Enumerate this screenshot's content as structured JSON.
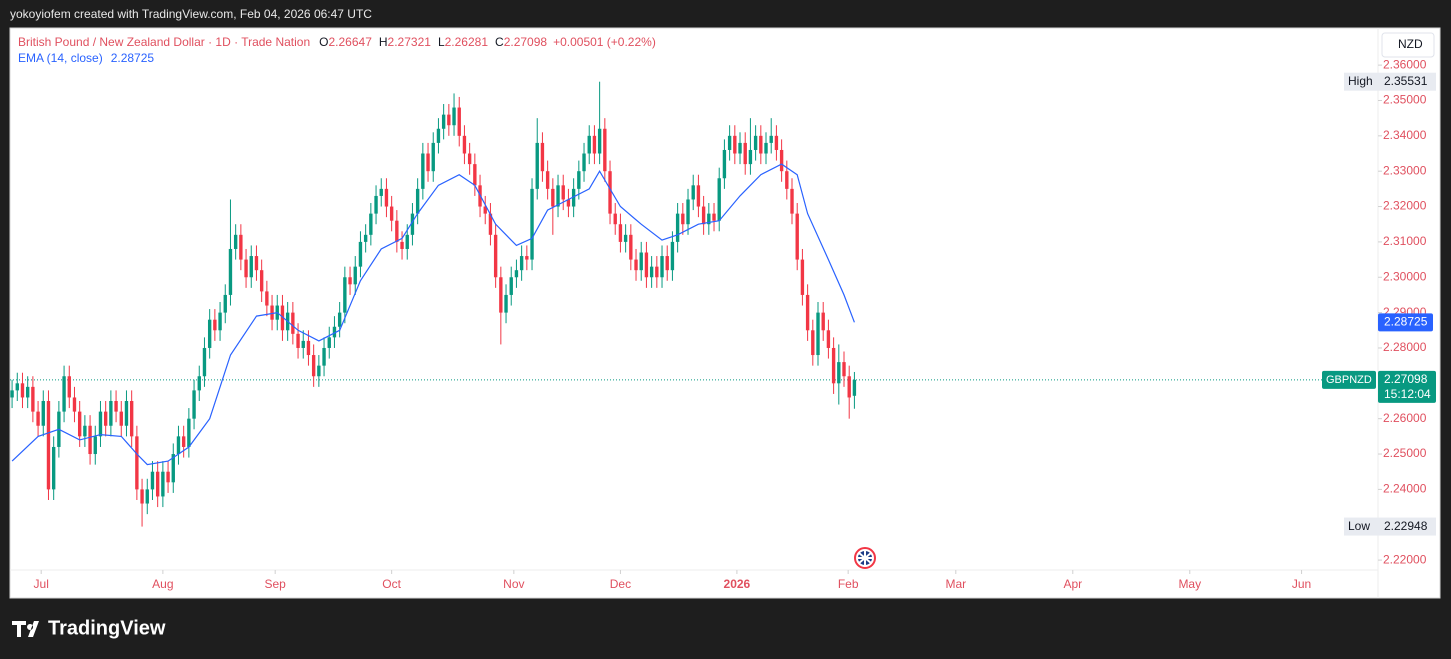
{
  "header": "yokoyiofem created with TradingView.com, Feb 04, 2026 06:47 UTC",
  "brand": "TradingView",
  "chart_data": {
    "type": "candlestick",
    "title": "British Pound / New Zealand Dollar · 1D · Trade Nation",
    "ohlc_labels": [
      "O",
      "H",
      "L",
      "C"
    ],
    "change": "+0.00501 (+0.22%)",
    "currency": "NZD",
    "symbol": "GBPNZD",
    "countdown": "15:12:04",
    "high_label": "High",
    "low_label": "Low",
    "up_color": "#089981",
    "down_color": "#f23645",
    "grid": false,
    "open": [
      2.266,
      2.268,
      2.27,
      2.266,
      2.269,
      2.262,
      2.258,
      2.265,
      2.24,
      2.252,
      2.262,
      2.272,
      2.266,
      2.262,
      2.255,
      2.258,
      2.25,
      2.255,
      2.262,
      2.258,
      2.265,
      2.262,
      2.258,
      2.265,
      2.255,
      2.24,
      2.236,
      2.24,
      2.245,
      2.238,
      2.245,
      2.242,
      2.25,
      2.255,
      2.252,
      2.26,
      2.268,
      2.272,
      2.28,
      2.288,
      2.285,
      2.29,
      2.295,
      2.308,
      2.312,
      2.305,
      2.3,
      2.306,
      2.302,
      2.296,
      2.292,
      2.288,
      2.292,
      2.285,
      2.29,
      2.284,
      2.28,
      2.282,
      2.278,
      2.272,
      2.275,
      2.28,
      2.283,
      2.286,
      2.29,
      2.3,
      2.298,
      2.303,
      2.31,
      2.312,
      2.318,
      2.323,
      2.325,
      2.32,
      2.316,
      2.31,
      2.308,
      2.312,
      2.318,
      2.325,
      2.335,
      2.33,
      2.338,
      2.342,
      2.346,
      2.343,
      2.348,
      2.34,
      2.335,
      2.332,
      2.326,
      2.32,
      2.318,
      2.312,
      2.3,
      2.29,
      2.295,
      2.3,
      2.302,
      2.306,
      2.305,
      2.325,
      2.338,
      2.33,
      2.325,
      2.32,
      2.326,
      2.322,
      2.32,
      2.325,
      2.33,
      2.335,
      2.34,
      2.335,
      2.342,
      2.33,
      2.318,
      2.315,
      2.31,
      2.312,
      2.305,
      2.302,
      2.307,
      2.3,
      2.303,
      2.3,
      2.306,
      2.302,
      2.31,
      2.318,
      2.315,
      2.322,
      2.326,
      2.32,
      2.315,
      2.318,
      2.316,
      2.328,
      2.336,
      2.34,
      2.335,
      2.338,
      2.332,
      2.336,
      2.34,
      2.335,
      2.338,
      2.34,
      2.336,
      2.33,
      2.325,
      2.318,
      2.305,
      2.295,
      2.285,
      2.278,
      2.29,
      2.285,
      2.28,
      2.27,
      2.276,
      2.272,
      2.26647
    ],
    "high": [
      2.271,
      2.273,
      2.273,
      2.272,
      2.272,
      2.265,
      2.268,
      2.268,
      2.255,
      2.265,
      2.275,
      2.275,
      2.269,
      2.265,
      2.261,
      2.261,
      2.258,
      2.265,
      2.265,
      2.268,
      2.268,
      2.265,
      2.268,
      2.268,
      2.258,
      2.243,
      2.243,
      2.248,
      2.248,
      2.248,
      2.248,
      2.253,
      2.258,
      2.258,
      2.263,
      2.271,
      2.275,
      2.283,
      2.291,
      2.291,
      2.293,
      2.298,
      2.322,
      2.315,
      2.315,
      2.308,
      2.309,
      2.309,
      2.305,
      2.299,
      2.295,
      2.295,
      2.295,
      2.293,
      2.293,
      2.287,
      2.285,
      2.285,
      2.281,
      2.278,
      2.283,
      2.286,
      2.289,
      2.293,
      2.303,
      2.303,
      2.306,
      2.313,
      2.315,
      2.321,
      2.326,
      2.328,
      2.328,
      2.323,
      2.319,
      2.313,
      2.315,
      2.321,
      2.328,
      2.338,
      2.338,
      2.341,
      2.345,
      2.349,
      2.349,
      2.352,
      2.351,
      2.343,
      2.338,
      2.335,
      2.329,
      2.323,
      2.321,
      2.315,
      2.303,
      2.298,
      2.303,
      2.305,
      2.309,
      2.309,
      2.328,
      2.345,
      2.341,
      2.333,
      2.328,
      2.329,
      2.329,
      2.325,
      2.328,
      2.333,
      2.338,
      2.343,
      2.343,
      2.35531,
      2.345,
      2.333,
      2.321,
      2.318,
      2.315,
      2.315,
      2.308,
      2.31,
      2.31,
      2.306,
      2.306,
      2.309,
      2.309,
      2.313,
      2.321,
      2.321,
      2.325,
      2.329,
      2.329,
      2.323,
      2.321,
      2.321,
      2.331,
      2.339,
      2.343,
      2.343,
      2.341,
      2.341,
      2.345,
      2.343,
      2.343,
      2.341,
      2.345,
      2.343,
      2.339,
      2.333,
      2.328,
      2.321,
      2.308,
      2.298,
      2.288,
      2.293,
      2.293,
      2.288,
      2.283,
      2.281,
      2.279,
      2.275,
      2.27321
    ],
    "low": [
      2.263,
      2.265,
      2.263,
      2.263,
      2.259,
      2.255,
      2.255,
      2.237,
      2.237,
      2.249,
      2.259,
      2.263,
      2.259,
      2.252,
      2.252,
      2.247,
      2.247,
      2.252,
      2.255,
      2.255,
      2.259,
      2.255,
      2.255,
      2.252,
      2.237,
      2.22948,
      2.233,
      2.237,
      2.235,
      2.235,
      2.239,
      2.239,
      2.247,
      2.249,
      2.249,
      2.257,
      2.265,
      2.269,
      2.277,
      2.282,
      2.282,
      2.287,
      2.292,
      2.305,
      2.302,
      2.297,
      2.297,
      2.299,
      2.293,
      2.289,
      2.285,
      2.285,
      2.282,
      2.282,
      2.281,
      2.277,
      2.277,
      2.275,
      2.269,
      2.269,
      2.272,
      2.277,
      2.28,
      2.283,
      2.287,
      2.295,
      2.295,
      2.3,
      2.307,
      2.309,
      2.315,
      2.32,
      2.317,
      2.313,
      2.307,
      2.305,
      2.305,
      2.309,
      2.315,
      2.322,
      2.327,
      2.327,
      2.335,
      2.339,
      2.34,
      2.34,
      2.337,
      2.332,
      2.329,
      2.323,
      2.317,
      2.315,
      2.309,
      2.297,
      2.281,
      2.287,
      2.292,
      2.297,
      2.299,
      2.302,
      2.302,
      2.322,
      2.327,
      2.322,
      2.312,
      2.317,
      2.319,
      2.317,
      2.317,
      2.322,
      2.327,
      2.332,
      2.332,
      2.332,
      2.327,
      2.315,
      2.312,
      2.307,
      2.307,
      2.302,
      2.299,
      2.299,
      2.297,
      2.297,
      2.297,
      2.297,
      2.299,
      2.299,
      2.307,
      2.312,
      2.312,
      2.319,
      2.317,
      2.312,
      2.312,
      2.313,
      2.313,
      2.325,
      2.333,
      2.332,
      2.332,
      2.329,
      2.329,
      2.333,
      2.332,
      2.332,
      2.335,
      2.333,
      2.327,
      2.322,
      2.315,
      2.302,
      2.292,
      2.282,
      2.275,
      2.275,
      2.282,
      2.277,
      2.267,
      2.264,
      2.269,
      2.26,
      2.26281
    ],
    "close": [
      2.268,
      2.27,
      2.266,
      2.269,
      2.262,
      2.258,
      2.265,
      2.24,
      2.252,
      2.262,
      2.272,
      2.266,
      2.262,
      2.255,
      2.258,
      2.25,
      2.255,
      2.262,
      2.258,
      2.265,
      2.262,
      2.258,
      2.265,
      2.255,
      2.24,
      2.236,
      2.24,
      2.245,
      2.238,
      2.245,
      2.242,
      2.25,
      2.255,
      2.252,
      2.26,
      2.268,
      2.272,
      2.28,
      2.288,
      2.285,
      2.29,
      2.295,
      2.308,
      2.312,
      2.305,
      2.3,
      2.306,
      2.302,
      2.296,
      2.292,
      2.288,
      2.292,
      2.285,
      2.29,
      2.284,
      2.28,
      2.282,
      2.278,
      2.272,
      2.275,
      2.28,
      2.283,
      2.286,
      2.29,
      2.3,
      2.298,
      2.303,
      2.31,
      2.312,
      2.318,
      2.323,
      2.325,
      2.32,
      2.316,
      2.31,
      2.308,
      2.312,
      2.318,
      2.325,
      2.335,
      2.33,
      2.338,
      2.342,
      2.346,
      2.343,
      2.348,
      2.34,
      2.335,
      2.332,
      2.326,
      2.32,
      2.318,
      2.312,
      2.3,
      2.29,
      2.295,
      2.3,
      2.302,
      2.306,
      2.305,
      2.325,
      2.338,
      2.33,
      2.325,
      2.32,
      2.326,
      2.322,
      2.32,
      2.325,
      2.33,
      2.335,
      2.34,
      2.335,
      2.342,
      2.33,
      2.318,
      2.315,
      2.31,
      2.312,
      2.305,
      2.302,
      2.307,
      2.3,
      2.303,
      2.3,
      2.306,
      2.302,
      2.31,
      2.318,
      2.315,
      2.322,
      2.326,
      2.32,
      2.315,
      2.318,
      2.316,
      2.328,
      2.336,
      2.34,
      2.335,
      2.338,
      2.332,
      2.336,
      2.34,
      2.335,
      2.338,
      2.34,
      2.336,
      2.33,
      2.325,
      2.318,
      2.305,
      2.295,
      2.285,
      2.278,
      2.29,
      2.285,
      2.28,
      2.27,
      2.276,
      2.272,
      2.266,
      2.27098
    ],
    "ema": {
      "name": "EMA (14, close)",
      "color": "#2962ff",
      "x": [
        0,
        5,
        9,
        13,
        17,
        21,
        24,
        26,
        30,
        34,
        38,
        42,
        47,
        51,
        55,
        59,
        63,
        67,
        71,
        75,
        78,
        82,
        86,
        89,
        93,
        97,
        100,
        103,
        107,
        111,
        113,
        117,
        121,
        125,
        128,
        132,
        136,
        140,
        144,
        148,
        151,
        153,
        157,
        160,
        162
      ],
      "values": [
        2.248,
        2.255,
        2.257,
        2.254,
        2.2555,
        2.255,
        2.25,
        2.247,
        2.248,
        2.252,
        2.26,
        2.278,
        2.289,
        2.29,
        2.285,
        2.282,
        2.285,
        2.299,
        2.308,
        2.311,
        2.318,
        2.326,
        2.329,
        2.326,
        2.315,
        2.309,
        2.311,
        2.319,
        2.322,
        2.325,
        2.33,
        2.32,
        2.315,
        2.3105,
        2.312,
        2.315,
        2.316,
        2.323,
        2.329,
        2.332,
        2.329,
        2.318,
        2.305,
        2.295,
        2.28725
      ]
    },
    "xlim": [
      -0.4,
      262.7
    ],
    "xticks": [
      {
        "value": 5.6,
        "label": "Jul"
      },
      {
        "value": 29,
        "label": "Aug"
      },
      {
        "value": 50.6,
        "label": "Sep"
      },
      {
        "value": 73,
        "label": "Oct"
      },
      {
        "value": 96.5,
        "label": "Nov"
      },
      {
        "value": 117,
        "label": "Dec"
      },
      {
        "value": 139.4,
        "label": "2026"
      },
      {
        "value": 160.8,
        "label": "Feb"
      },
      {
        "value": 181.5,
        "label": "Mar"
      },
      {
        "value": 204,
        "label": "Apr"
      },
      {
        "value": 226.5,
        "label": "May"
      },
      {
        "value": 248,
        "label": "Jun"
      }
    ],
    "ylim": [
      2.2172,
      2.3705
    ],
    "yticks": [
      {
        "value": 2.36,
        "label": "2.36000"
      },
      {
        "value": 2.35,
        "label": "2.35000"
      },
      {
        "value": 2.34,
        "label": "2.34000"
      },
      {
        "value": 2.33,
        "label": "2.33000"
      },
      {
        "value": 2.32,
        "label": "2.32000"
      },
      {
        "value": 2.31,
        "label": "2.31000"
      },
      {
        "value": 2.3,
        "label": "2.30000"
      },
      {
        "value": 2.29,
        "label": "2.29000"
      },
      {
        "value": 2.28,
        "label": "2.28000"
      },
      {
        "value": 2.26,
        "label": "2.26000"
      },
      {
        "value": 2.25,
        "label": "2.25000"
      },
      {
        "value": 2.24,
        "label": "2.24000"
      },
      {
        "value": 2.22,
        "label": "2.22000"
      }
    ]
  }
}
